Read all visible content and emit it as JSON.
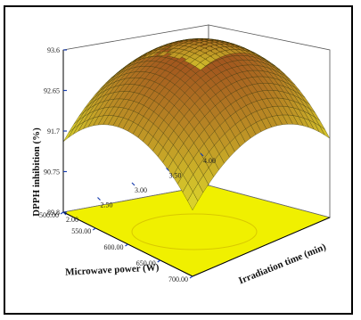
{
  "chart_data": {
    "type": "surface3d",
    "title": "",
    "xlabel": "Irradiation time (min)",
    "ylabel": "Microwave power (W)",
    "zlabel": "DPPH inhibition (%)",
    "x_ticks": [
      "2.00",
      "2.50",
      "3.00",
      "3.50",
      "4.00"
    ],
    "y_ticks": [
      "500.00",
      "550.00",
      "600.00",
      "650.00",
      "700.00"
    ],
    "z_ticks": [
      "89.8",
      "90.75",
      "91.7",
      "92.65",
      "93.6"
    ],
    "xlim": [
      2.0,
      4.0
    ],
    "ylim": [
      500,
      700
    ],
    "zlim": [
      89.8,
      93.6
    ],
    "surface_peak": {
      "x": 3.0,
      "y": 600,
      "z": 93.6
    },
    "surface_corners": [
      {
        "x": 2.0,
        "y": 500,
        "z": 91.1
      },
      {
        "x": 4.0,
        "y": 500,
        "z": 91.5
      },
      {
        "x": 2.0,
        "y": 700,
        "z": 91.3
      },
      {
        "x": 4.0,
        "y": 700,
        "z": 91.0
      }
    ],
    "colors": {
      "high": "#a0521e",
      "mid": "#c8a032",
      "low": "#e8f030",
      "floor": "#f0f000",
      "mesh": "#2a2a00"
    }
  }
}
